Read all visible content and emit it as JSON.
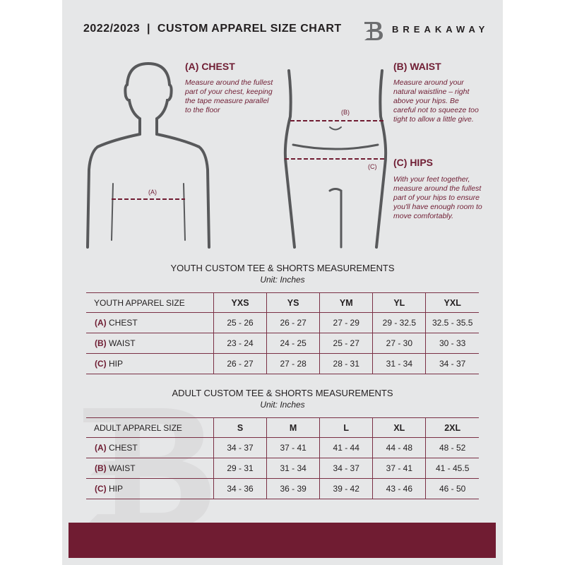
{
  "header": {
    "title": "2022/2023  |  CUSTOM APPAREL SIZE CHART",
    "brand": "BREAKAWAY",
    "logo_letter": "B"
  },
  "sections": {
    "chest": {
      "heading": "(A) CHEST",
      "text": "Measure around the fullest part of your chest, keeping the tape measure parallel to the floor",
      "marker": "(A)"
    },
    "waist": {
      "heading": "(B) WAIST",
      "text": "Measure around your natural waistline – right above your hips. Be careful not to squeeze too tight to allow a little give.",
      "marker": "(B)"
    },
    "hips": {
      "heading": "(C) HIPS",
      "text": "With your feet together, measure around the fullest part of your hips to ensure you'll have enough room to move comfortably.",
      "marker": "(C)"
    }
  },
  "youth": {
    "title": "YOUTH CUSTOM TEE & SHORTS MEASUREMENTS",
    "unit": "Unit: Inches",
    "header": [
      "YOUTH APPAREL SIZE",
      "YXS",
      "YS",
      "YM",
      "YL",
      "YXL"
    ],
    "rows": [
      {
        "letter": "(A)",
        "label": "CHEST",
        "values": [
          "25 - 26",
          "26 - 27",
          "27 - 29",
          "29 - 32.5",
          "32.5 - 35.5"
        ]
      },
      {
        "letter": "(B)",
        "label": "WAIST",
        "values": [
          "23 - 24",
          "24 - 25",
          "25 - 27",
          "27 - 30",
          "30 - 33"
        ]
      },
      {
        "letter": "(C)",
        "label": "HIP",
        "values": [
          "26 - 27",
          "27 - 28",
          "28 - 31",
          "31 - 34",
          "34 - 37"
        ]
      }
    ]
  },
  "adult": {
    "title": "ADULT CUSTOM TEE & SHORTS MEASUREMENTS",
    "unit": "Unit: Inches",
    "header": [
      "ADULT APPAREL SIZE",
      "S",
      "M",
      "L",
      "XL",
      "2XL"
    ],
    "rows": [
      {
        "letter": "(A)",
        "label": "CHEST",
        "values": [
          "34 - 37",
          "37 - 41",
          "41 - 44",
          "44 - 48",
          "48 - 52"
        ]
      },
      {
        "letter": "(B)",
        "label": "WAIST",
        "values": [
          "29 - 31",
          "31 - 34",
          "34 - 37",
          "37 - 41",
          "41 - 45.5"
        ]
      },
      {
        "letter": "(C)",
        "label": "HIP",
        "values": [
          "34 - 36",
          "36 - 39",
          "39 - 42",
          "43 - 46",
          "46 - 50"
        ]
      }
    ]
  },
  "colors": {
    "accent": "#701c32",
    "background": "#e6e7e8",
    "text": "#231f20"
  }
}
